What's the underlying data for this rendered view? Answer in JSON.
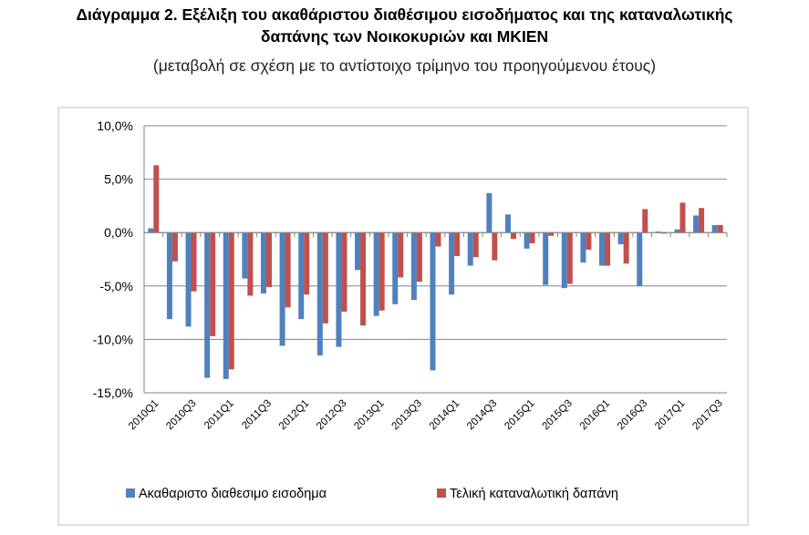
{
  "chart_data": {
    "type": "bar",
    "title": "Διάγραμμα 2. Εξέλιξη του ακαθάριστου διαθέσιμου εισοδήματος και της καταναλωτικής",
    "title_line2": "δαπάνης των Νοικοκυριών και ΜΚΙΕΝ",
    "subtitle": "(μεταβολή σε σχέση με το αντίστοιχο τρίμηνο του προηγούμενου έτους)",
    "categories": [
      "2010Q1",
      "2010Q2",
      "2010Q3",
      "2010Q4",
      "2011Q1",
      "2011Q2",
      "2011Q3",
      "2011Q4",
      "2012Q1",
      "2012Q2",
      "2012Q3",
      "2012Q4",
      "2013Q1",
      "2013Q2",
      "2013Q3",
      "2013Q4",
      "2014Q1",
      "2014Q2",
      "2014Q3",
      "2014Q4",
      "2015Q1",
      "2015Q2",
      "2015Q3",
      "2015Q4",
      "2016Q1",
      "2016Q2",
      "2016Q3",
      "2016Q4",
      "2017Q1",
      "2017Q2",
      "2017Q3"
    ],
    "x_tick_labels": [
      "2010Q1",
      "2010Q3",
      "2011Q1",
      "2011Q3",
      "2012Q1",
      "2012Q3",
      "2013Q1",
      "2013Q3",
      "2014Q1",
      "2014Q3",
      "2015Q1",
      "2015Q3",
      "2016Q1",
      "2016Q3",
      "2017Q1",
      "2017Q3"
    ],
    "y_tick_labels": [
      "10,0%",
      "5,0%",
      "0,0%",
      "-5,0%",
      "-10,0%",
      "-15,0%"
    ],
    "y_ticks": [
      10,
      5,
      0,
      -5,
      -10,
      -15
    ],
    "ylim": [
      -15,
      10
    ],
    "grid": true,
    "legend_position": "bottom",
    "series": [
      {
        "name": "Ακαθαριστο διαθεσιμο εισοδημα",
        "color": "#4f81bd",
        "values": [
          0.4,
          -8.1,
          -8.8,
          -13.6,
          -13.7,
          -4.3,
          -5.7,
          -10.6,
          -8.1,
          -11.5,
          -10.7,
          -3.5,
          -7.8,
          -6.7,
          -6.3,
          -12.9,
          -5.8,
          -3.1,
          3.7,
          1.7,
          -1.5,
          -4.9,
          -5.2,
          -2.8,
          -3.1,
          -1.1,
          -5.0,
          0.1,
          0.3,
          1.6,
          0.7
        ]
      },
      {
        "name": "Τελική καταναλωτική δαπάνη",
        "color": "#c0504d",
        "values": [
          6.3,
          -2.7,
          -5.5,
          -9.7,
          -12.8,
          -5.9,
          -5.1,
          -7.0,
          -5.8,
          -8.5,
          -7.4,
          -8.7,
          -7.3,
          -4.2,
          -4.6,
          -1.3,
          -2.2,
          -2.3,
          -2.6,
          -0.6,
          -1.0,
          -0.3,
          -4.8,
          -1.6,
          -3.1,
          -2.9,
          2.2,
          -0.1,
          2.8,
          2.3,
          0.7
        ]
      }
    ]
  }
}
